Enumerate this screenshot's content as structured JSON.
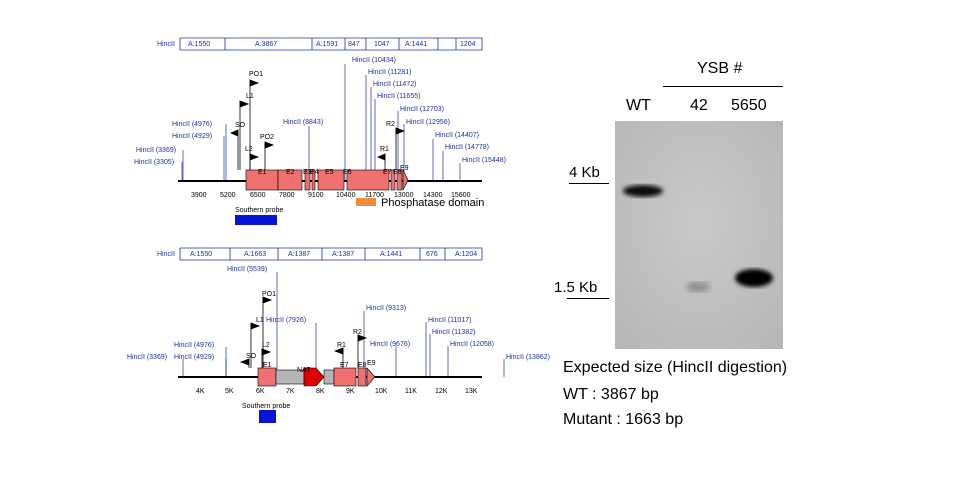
{
  "top_map": {
    "region_row_label": "HincII",
    "region_boxes": [
      "A:1550",
      "A:3867",
      "A:1591",
      "847",
      "1047",
      "A:1441",
      "1204"
    ],
    "hincii_sites": [
      "HincII (3305)",
      "HincII (3369)",
      "HincII (4929)",
      "HincII (4976)",
      "HincII (8843)",
      "HincII (10434)",
      "HincII (11281)",
      "HincII (11472)",
      "HincII (11655)",
      "HincII (12703)",
      "HincII (12956)",
      "HincII (14407)",
      "HincII (14778)",
      "HincII (15448)"
    ],
    "primers": [
      "PO1",
      "L1",
      "SO",
      "PO2",
      "L2",
      "R2",
      "R1"
    ],
    "exons": [
      "E1",
      "E2",
      "E3",
      "E4",
      "E5",
      "E6",
      "E7",
      "E8",
      "E9"
    ],
    "ticks": [
      "3900",
      "5200",
      "6500",
      "7800",
      "9100",
      "10400",
      "11700",
      "13000",
      "14300",
      "15600"
    ],
    "legend_domain": "Phosphatase domain",
    "probe_label": "Southern probe"
  },
  "bottom_map": {
    "region_row_label": "HincII",
    "region_boxes": [
      "A:1550",
      "A:1663",
      "A:1387",
      "A:1387",
      "A:1441",
      "676",
      "A:1204"
    ],
    "hincii_sites": [
      "HincII (3369)",
      "HincII (4929)",
      "HincII (4976)",
      "HincII (5539)",
      "HincII (7926)",
      "HincII (9313)",
      "HincII (9676)",
      "HincII (11017)",
      "HincII (11382)",
      "HincII (12058)",
      "HincII (13862)"
    ],
    "primers": [
      "PO1",
      "L1",
      "SO",
      "L2",
      "R2",
      "R1"
    ],
    "exons": [
      "E1",
      "NAT",
      "E7",
      "E8",
      "E9"
    ],
    "ticks": [
      "4K",
      "5K",
      "6K",
      "7K",
      "8K",
      "9K",
      "10K",
      "11K",
      "12K",
      "13K"
    ],
    "probe_label": "Southern probe"
  },
  "gel": {
    "group_label": "YSB #",
    "lanes": [
      "WT",
      "42",
      "5650"
    ],
    "marker_4kb": "4 Kb",
    "marker_1_5kb": "1.5 Kb"
  },
  "expected": {
    "title": "Expected size (HincII digestion)",
    "wt": "WT : 3867 bp",
    "mutant": "Mutant : 1663 bp"
  },
  "colors": {
    "exon": "#f07070",
    "marker": "#1a2fa8",
    "probe": "#0a14d6",
    "domain": "#f08a3c",
    "nat": "#e00000",
    "intron_grey": "#b4b4b4"
  }
}
